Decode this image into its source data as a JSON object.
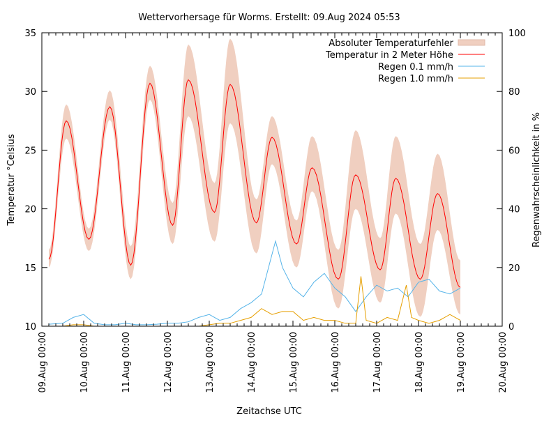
{
  "chart_data": {
    "type": "line",
    "title": "Wettervorhersage für Worms. Erstellt: 09.Aug 2024 05:53",
    "xlabel": "Zeitachse UTC",
    "ylabel": "Temperatur °Celsius",
    "y2label": "Regenwahrscheinlichkeit in %",
    "xlim": [
      "2024-08-09 00:00",
      "2024-08-20 00:00"
    ],
    "ylim": [
      10,
      35
    ],
    "y2lim": [
      0,
      100
    ],
    "x_ticks": [
      "09.Aug 00:00",
      "10.Aug 00:00",
      "11.Aug 00:00",
      "12.Aug 00:00",
      "13.Aug 00:00",
      "14.Aug 00:00",
      "15.Aug 00:00",
      "16.Aug 00:00",
      "17.Aug 00:00",
      "18.Aug 00:00",
      "19.Aug 00:00",
      "20.Aug 00:00"
    ],
    "y_ticks": [
      "10",
      "15",
      "20",
      "25",
      "30",
      "35"
    ],
    "y2_ticks": [
      "0",
      "20",
      "40",
      "60",
      "80",
      "100"
    ],
    "grid": false,
    "legend_position": "top-right",
    "colors": {
      "band": "#f0cfc0",
      "temperature": "#ff0000",
      "rain01": "#56b4e9",
      "rain10": "#e69f00"
    },
    "series": [
      {
        "name": "Absoluter Temperaturfehler",
        "type": "band",
        "axis": "left",
        "points": [
          [
            "2024-08-09 04:00",
            15.0,
            16.5
          ],
          [
            "2024-08-09 14:00",
            26.0,
            28.9
          ],
          [
            "2024-08-10 03:00",
            16.4,
            18.3
          ],
          [
            "2024-08-10 15:00",
            27.6,
            30.1
          ],
          [
            "2024-08-11 03:00",
            14.0,
            16.8
          ],
          [
            "2024-08-11 14:00",
            29.3,
            32.2
          ],
          [
            "2024-08-12 03:00",
            17.0,
            20.5
          ],
          [
            "2024-08-12 12:00",
            27.9,
            34.0
          ],
          [
            "2024-08-13 03:00",
            17.2,
            22.2
          ],
          [
            "2024-08-13 12:00",
            27.3,
            34.5
          ],
          [
            "2024-08-14 03:00",
            16.2,
            20.8
          ],
          [
            "2024-08-14 12:00",
            23.8,
            27.9
          ],
          [
            "2024-08-15 02:00",
            15.0,
            19.0
          ],
          [
            "2024-08-15 11:00",
            21.5,
            26.2
          ],
          [
            "2024-08-16 02:00",
            11.5,
            16.5
          ],
          [
            "2024-08-16 12:00",
            20.0,
            26.7
          ],
          [
            "2024-08-17 02:00",
            12.0,
            17.5
          ],
          [
            "2024-08-17 11:00",
            19.6,
            26.2
          ],
          [
            "2024-08-18 01:00",
            10.8,
            17.0
          ],
          [
            "2024-08-18 11:00",
            18.2,
            24.7
          ],
          [
            "2024-08-19 00:00",
            11.0,
            15.6
          ]
        ]
      },
      {
        "name": "Temperatur in 2 Meter Höhe",
        "axis": "left",
        "points": [
          [
            "2024-08-09 04:00",
            15.7
          ],
          [
            "2024-08-09 14:00",
            27.5
          ],
          [
            "2024-08-10 03:00",
            17.4
          ],
          [
            "2024-08-10 15:00",
            28.7
          ],
          [
            "2024-08-11 03:00",
            15.2
          ],
          [
            "2024-08-11 14:00",
            30.7
          ],
          [
            "2024-08-12 03:00",
            18.6
          ],
          [
            "2024-08-12 12:00",
            31.0
          ],
          [
            "2024-08-13 03:00",
            19.7
          ],
          [
            "2024-08-13 12:00",
            30.6
          ],
          [
            "2024-08-14 03:00",
            18.8
          ],
          [
            "2024-08-14 12:00",
            26.1
          ],
          [
            "2024-08-15 02:00",
            17.0
          ],
          [
            "2024-08-15 11:00",
            23.5
          ],
          [
            "2024-08-16 02:00",
            14.0
          ],
          [
            "2024-08-16 12:00",
            22.9
          ],
          [
            "2024-08-17 02:00",
            14.8
          ],
          [
            "2024-08-17 11:00",
            22.6
          ],
          [
            "2024-08-18 01:00",
            14.0
          ],
          [
            "2024-08-18 11:00",
            21.3
          ],
          [
            "2024-08-19 00:00",
            13.3
          ]
        ]
      },
      {
        "name": "Regen 0.1 mm/h",
        "axis": "right",
        "points": [
          [
            "2024-08-09 04:00",
            0.7
          ],
          [
            "2024-08-09 12:00",
            1
          ],
          [
            "2024-08-09 18:00",
            3
          ],
          [
            "2024-08-10 00:00",
            4
          ],
          [
            "2024-08-10 06:00",
            1
          ],
          [
            "2024-08-10 12:00",
            0.5
          ],
          [
            "2024-08-10 18:00",
            0.5
          ],
          [
            "2024-08-11 00:00",
            1
          ],
          [
            "2024-08-11 06:00",
            0.5
          ],
          [
            "2024-08-11 12:00",
            0.5
          ],
          [
            "2024-08-11 18:00",
            0.7
          ],
          [
            "2024-08-12 00:00",
            1
          ],
          [
            "2024-08-12 06:00",
            1
          ],
          [
            "2024-08-12 12:00",
            1.5
          ],
          [
            "2024-08-12 18:00",
            3
          ],
          [
            "2024-08-13 00:00",
            4
          ],
          [
            "2024-08-13 06:00",
            2
          ],
          [
            "2024-08-13 12:00",
            3
          ],
          [
            "2024-08-13 18:00",
            6
          ],
          [
            "2024-08-14 00:00",
            8
          ],
          [
            "2024-08-14 06:00",
            11
          ],
          [
            "2024-08-14 10:00",
            20
          ],
          [
            "2024-08-14 14:00",
            29
          ],
          [
            "2024-08-14 18:00",
            20
          ],
          [
            "2024-08-15 00:00",
            13
          ],
          [
            "2024-08-15 06:00",
            10
          ],
          [
            "2024-08-15 12:00",
            15
          ],
          [
            "2024-08-15 18:00",
            18
          ],
          [
            "2024-08-16 00:00",
            13
          ],
          [
            "2024-08-16 06:00",
            10
          ],
          [
            "2024-08-16 12:00",
            5
          ],
          [
            "2024-08-16 18:00",
            10
          ],
          [
            "2024-08-17 00:00",
            14
          ],
          [
            "2024-08-17 06:00",
            12
          ],
          [
            "2024-08-17 12:00",
            13
          ],
          [
            "2024-08-17 18:00",
            10
          ],
          [
            "2024-08-18 00:00",
            15
          ],
          [
            "2024-08-18 06:00",
            16
          ],
          [
            "2024-08-18 12:00",
            12
          ],
          [
            "2024-08-18 18:00",
            11
          ],
          [
            "2024-08-19 00:00",
            13
          ]
        ]
      },
      {
        "name": "Regen 1.0 mm/h",
        "axis": "right",
        "points": [
          [
            "2024-08-09 04:00",
            0
          ],
          [
            "2024-08-09 12:00",
            0
          ],
          [
            "2024-08-09 18:00",
            0.5
          ],
          [
            "2024-08-10 00:00",
            0.5
          ],
          [
            "2024-08-10 06:00",
            0
          ],
          [
            "2024-08-11 00:00",
            0
          ],
          [
            "2024-08-12 00:00",
            0
          ],
          [
            "2024-08-12 18:00",
            0
          ],
          [
            "2024-08-13 00:00",
            0.5
          ],
          [
            "2024-08-13 06:00",
            1
          ],
          [
            "2024-08-13 12:00",
            1
          ],
          [
            "2024-08-13 18:00",
            2
          ],
          [
            "2024-08-14 00:00",
            3
          ],
          [
            "2024-08-14 06:00",
            6
          ],
          [
            "2024-08-14 12:00",
            4
          ],
          [
            "2024-08-14 18:00",
            5
          ],
          [
            "2024-08-15 00:00",
            5
          ],
          [
            "2024-08-15 06:00",
            2
          ],
          [
            "2024-08-15 12:00",
            3
          ],
          [
            "2024-08-15 18:00",
            2
          ],
          [
            "2024-08-16 00:00",
            2
          ],
          [
            "2024-08-16 06:00",
            1
          ],
          [
            "2024-08-16 12:00",
            1
          ],
          [
            "2024-08-16 15:00",
            17
          ],
          [
            "2024-08-16 18:00",
            2
          ],
          [
            "2024-08-17 00:00",
            1
          ],
          [
            "2024-08-17 06:00",
            3
          ],
          [
            "2024-08-17 12:00",
            2
          ],
          [
            "2024-08-17 17:00",
            14
          ],
          [
            "2024-08-17 20:00",
            3
          ],
          [
            "2024-08-18 00:00",
            2
          ],
          [
            "2024-08-18 06:00",
            1
          ],
          [
            "2024-08-18 12:00",
            2
          ],
          [
            "2024-08-18 18:00",
            4
          ],
          [
            "2024-08-19 00:00",
            2
          ]
        ]
      }
    ]
  }
}
